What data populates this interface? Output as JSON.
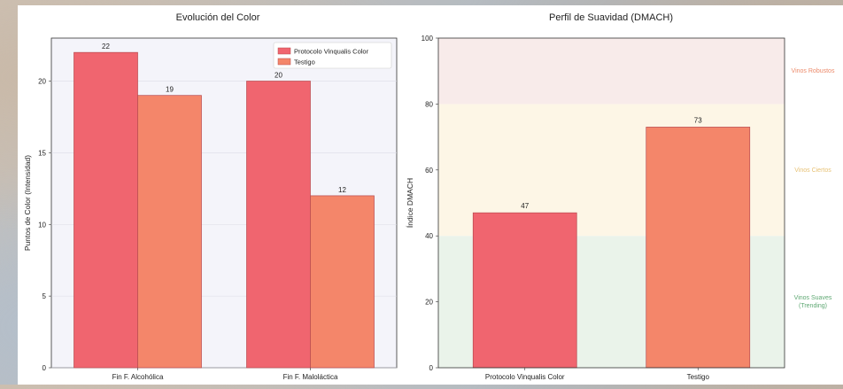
{
  "chart_data": [
    {
      "type": "bar",
      "title": "Evolución del Color",
      "xlabel": "",
      "ylabel": "Puntos de Color (Intensidad)",
      "categories": [
        "Fin F. Alcohólica",
        "Fin F. Maloláctica"
      ],
      "series": [
        {
          "name": "Protocolo Vinqualis Color",
          "values": [
            22,
            20
          ],
          "color": "#f0656f"
        },
        {
          "name": "Testigo",
          "values": [
            19,
            12
          ],
          "color": "#f4866a"
        }
      ],
      "ylim": [
        0,
        23
      ],
      "yticks": [
        0,
        5,
        10,
        15,
        20
      ],
      "legend": "top-right",
      "grid": true
    },
    {
      "type": "bar",
      "title": "Perfil de Suavidad (DMACH)",
      "xlabel": "",
      "ylabel": "Índice DMACH",
      "categories": [
        "Protocolo Vinqualis Color",
        "Testigo"
      ],
      "values": [
        47,
        73
      ],
      "colors": [
        "#f0656f",
        "#f4866a"
      ],
      "ylim": [
        0,
        100
      ],
      "yticks": [
        0,
        20,
        40,
        60,
        80,
        100
      ],
      "grid": false,
      "zones": [
        {
          "label": "Vinos Suaves\n(Trending)",
          "range": [
            0,
            40
          ],
          "color": "#eaf3ea",
          "text_color": "#5fa873"
        },
        {
          "label": "Vinos Ciertos",
          "range": [
            40,
            80
          ],
          "color": "#fdf6e6",
          "text_color": "#e7c276"
        },
        {
          "label": "Vinos Robustos",
          "range": [
            80,
            100
          ],
          "color": "#f8ebea",
          "text_color": "#ec8a6a"
        }
      ]
    }
  ]
}
